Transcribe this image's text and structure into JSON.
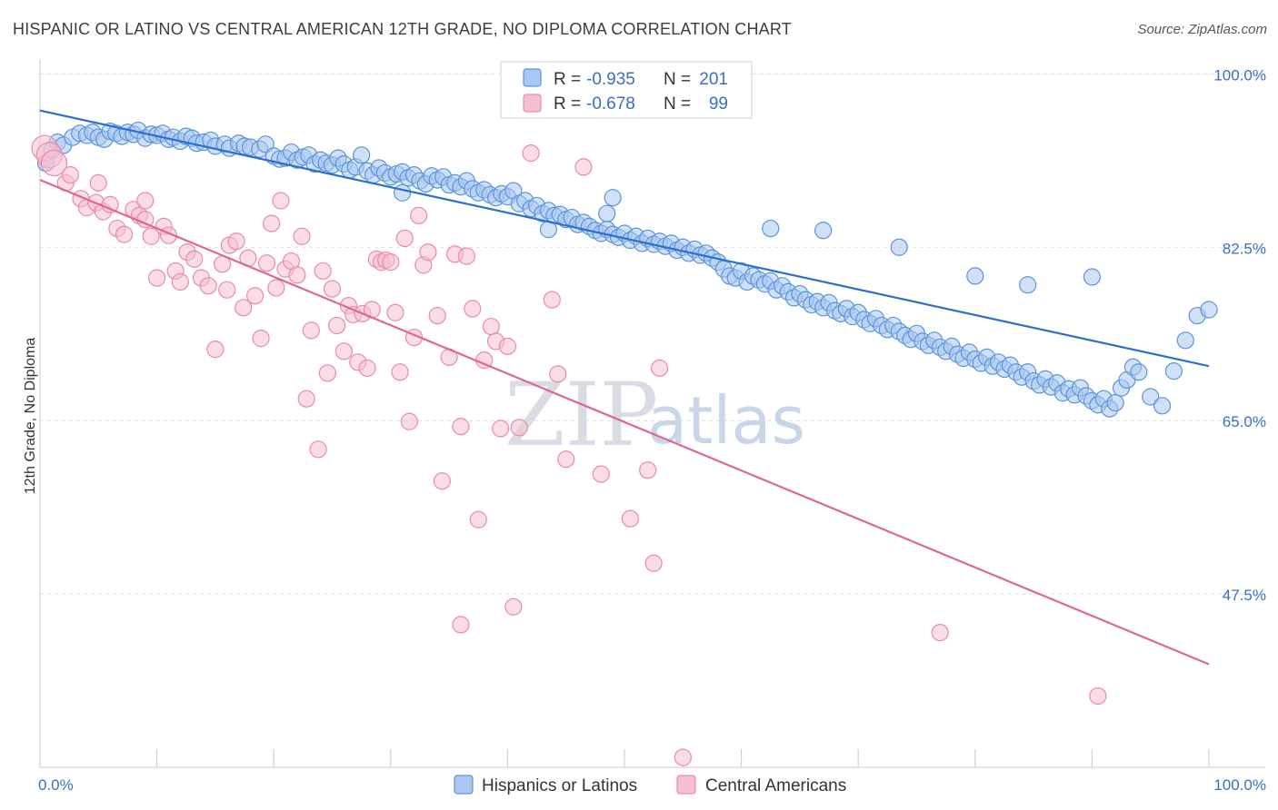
{
  "title": "HISPANIC OR LATINO VS CENTRAL AMERICAN 12TH GRADE, NO DIPLOMA CORRELATION CHART",
  "source": "Source: ZipAtlas.com",
  "watermark": {
    "part1": "ZIP",
    "part2": "atlas"
  },
  "colors": {
    "blue_fill": "#a9c8f0",
    "blue_stroke": "#5b93dc",
    "blue_line": "#2b6fd1",
    "pink_fill": "#f6bfd1",
    "pink_stroke": "#e98aab",
    "pink_line": "#e06594",
    "grid": "#dcdcdc",
    "axis_text": "#3a6fc4"
  },
  "legend": {
    "rows": [
      {
        "r_label": "R =",
        "r_value": "-0.935",
        "n_label": "N =",
        "n_value": "201"
      },
      {
        "r_label": "R =",
        "r_value": "-0.678",
        "n_label": "N =",
        "n_value": "99"
      }
    ]
  },
  "bottom_legend": [
    "Hispanics or Latinos",
    "Central Americans"
  ],
  "chart_data": {
    "type": "scatter",
    "title": "HISPANIC OR LATINO VS CENTRAL AMERICAN 12TH GRADE, NO DIPLOMA CORRELATION CHART",
    "xlabel": "",
    "ylabel": "12th Grade, No Diploma",
    "x_tick_labels": [
      "0.0%",
      "100.0%"
    ],
    "y_tick_labels": [
      "100.0%",
      "82.5%",
      "65.0%",
      "47.5%"
    ],
    "y_ticks": [
      100,
      82.5,
      65,
      47.5
    ],
    "xlim": [
      0,
      100
    ],
    "ylim": [
      30,
      101.5
    ],
    "grid": true,
    "legend_position": "top-center",
    "series": [
      {
        "name": "Hispanics or Latinos",
        "trend": {
          "x": [
            0,
            100
          ],
          "y": [
            96.3,
            70.5
          ]
        },
        "points": [
          [
            0.5,
            91.0
          ],
          [
            1.0,
            92.3
          ],
          [
            1.5,
            93.1
          ],
          [
            2.0,
            92.8
          ],
          [
            2.8,
            93.6
          ],
          [
            3.4,
            94.0
          ],
          [
            4.0,
            93.8
          ],
          [
            4.5,
            94.1
          ],
          [
            5.0,
            93.6
          ],
          [
            5.5,
            93.4
          ],
          [
            6.0,
            94.2
          ],
          [
            6.5,
            94.0
          ],
          [
            7.0,
            93.7
          ],
          [
            7.5,
            94.1
          ],
          [
            8.0,
            93.9
          ],
          [
            8.4,
            94.3
          ],
          [
            9.0,
            93.5
          ],
          [
            9.5,
            93.9
          ],
          [
            10.0,
            93.8
          ],
          [
            10.5,
            94.0
          ],
          [
            11.0,
            93.4
          ],
          [
            11.4,
            93.6
          ],
          [
            12.0,
            93.2
          ],
          [
            12.5,
            93.7
          ],
          [
            13.0,
            93.5
          ],
          [
            13.4,
            93.0
          ],
          [
            14.0,
            93.1
          ],
          [
            14.6,
            93.3
          ],
          [
            15.0,
            92.7
          ],
          [
            15.8,
            92.9
          ],
          [
            16.2,
            92.5
          ],
          [
            17.0,
            93.0
          ],
          [
            17.5,
            92.7
          ],
          [
            18.0,
            92.6
          ],
          [
            18.8,
            92.4
          ],
          [
            19.3,
            92.9
          ],
          [
            20.0,
            91.7
          ],
          [
            20.5,
            91.4
          ],
          [
            21.0,
            91.5
          ],
          [
            21.5,
            92.1
          ],
          [
            22.0,
            91.3
          ],
          [
            22.5,
            91.6
          ],
          [
            23.0,
            91.8
          ],
          [
            23.5,
            90.9
          ],
          [
            24.0,
            91.3
          ],
          [
            24.5,
            91.0
          ],
          [
            25.0,
            90.8
          ],
          [
            25.5,
            91.5
          ],
          [
            26.0,
            90.9
          ],
          [
            26.5,
            90.3
          ],
          [
            27.0,
            90.6
          ],
          [
            27.5,
            91.8
          ],
          [
            28.0,
            90.2
          ],
          [
            28.5,
            89.8
          ],
          [
            29.0,
            90.5
          ],
          [
            29.5,
            90.0
          ],
          [
            30.0,
            89.6
          ],
          [
            30.5,
            89.9
          ],
          [
            31.0,
            90.1
          ],
          [
            31.5,
            89.5
          ],
          [
            32.0,
            89.8
          ],
          [
            32.5,
            89.2
          ],
          [
            33.0,
            88.9
          ],
          [
            33.5,
            89.7
          ],
          [
            34.0,
            89.3
          ],
          [
            34.5,
            89.6
          ],
          [
            35.0,
            88.8
          ],
          [
            35.5,
            89.0
          ],
          [
            36.0,
            88.6
          ],
          [
            36.5,
            89.2
          ],
          [
            37.0,
            88.4
          ],
          [
            37.5,
            88.0
          ],
          [
            38.0,
            88.3
          ],
          [
            38.5,
            87.8
          ],
          [
            39.0,
            87.5
          ],
          [
            39.5,
            87.9
          ],
          [
            40.0,
            87.6
          ],
          [
            40.5,
            88.2
          ],
          [
            41.0,
            86.9
          ],
          [
            41.5,
            87.2
          ],
          [
            42.0,
            86.4
          ],
          [
            42.5,
            86.7
          ],
          [
            43.0,
            85.9
          ],
          [
            43.5,
            86.2
          ],
          [
            44.0,
            85.7
          ],
          [
            44.5,
            85.8
          ],
          [
            45.0,
            85.3
          ],
          [
            45.5,
            85.5
          ],
          [
            46.0,
            84.8
          ],
          [
            46.5,
            85.0
          ],
          [
            47.0,
            84.6
          ],
          [
            47.5,
            84.2
          ],
          [
            48.0,
            83.9
          ],
          [
            48.5,
            84.3
          ],
          [
            49.0,
            83.8
          ],
          [
            49.5,
            83.5
          ],
          [
            50.0,
            83.9
          ],
          [
            50.5,
            83.2
          ],
          [
            51.0,
            83.6
          ],
          [
            51.5,
            82.9
          ],
          [
            52.0,
            83.4
          ],
          [
            52.5,
            82.8
          ],
          [
            53.0,
            83.1
          ],
          [
            53.5,
            82.6
          ],
          [
            54.0,
            82.9
          ],
          [
            54.5,
            82.2
          ],
          [
            55.0,
            82.5
          ],
          [
            55.5,
            81.9
          ],
          [
            56.0,
            82.3
          ],
          [
            56.5,
            81.7
          ],
          [
            57.0,
            81.9
          ],
          [
            57.5,
            81.4
          ],
          [
            58.0,
            81.0
          ],
          [
            58.5,
            80.3
          ],
          [
            59.0,
            79.6
          ],
          [
            59.5,
            79.4
          ],
          [
            60.0,
            80.1
          ],
          [
            60.5,
            79.0
          ],
          [
            61.0,
            79.6
          ],
          [
            61.5,
            79.2
          ],
          [
            62.0,
            78.8
          ],
          [
            62.5,
            79.1
          ],
          [
            63.0,
            78.2
          ],
          [
            63.5,
            78.6
          ],
          [
            64.0,
            78.0
          ],
          [
            64.5,
            77.4
          ],
          [
            65.0,
            77.8
          ],
          [
            65.5,
            77.2
          ],
          [
            66.0,
            76.7
          ],
          [
            66.5,
            77.0
          ],
          [
            67.0,
            76.4
          ],
          [
            67.5,
            76.9
          ],
          [
            68.0,
            76.1
          ],
          [
            68.5,
            75.8
          ],
          [
            69.0,
            76.3
          ],
          [
            69.5,
            75.5
          ],
          [
            70.0,
            75.9
          ],
          [
            70.5,
            75.2
          ],
          [
            71.0,
            74.8
          ],
          [
            71.5,
            75.3
          ],
          [
            72.0,
            74.6
          ],
          [
            72.5,
            74.2
          ],
          [
            73.0,
            74.6
          ],
          [
            73.5,
            74.0
          ],
          [
            74.0,
            73.6
          ],
          [
            74.5,
            73.2
          ],
          [
            75.0,
            73.8
          ],
          [
            75.5,
            73.0
          ],
          [
            76.0,
            72.6
          ],
          [
            76.5,
            73.1
          ],
          [
            77.0,
            72.4
          ],
          [
            77.5,
            72.0
          ],
          [
            78.0,
            72.5
          ],
          [
            78.5,
            71.7
          ],
          [
            79.0,
            71.3
          ],
          [
            79.5,
            71.9
          ],
          [
            80.0,
            71.2
          ],
          [
            80.5,
            70.8
          ],
          [
            81.0,
            71.4
          ],
          [
            81.5,
            70.5
          ],
          [
            82.0,
            70.9
          ],
          [
            82.5,
            70.2
          ],
          [
            83.0,
            70.6
          ],
          [
            83.5,
            69.9
          ],
          [
            84.0,
            69.4
          ],
          [
            84.5,
            69.9
          ],
          [
            85.0,
            69.0
          ],
          [
            85.5,
            68.6
          ],
          [
            86.0,
            69.2
          ],
          [
            86.5,
            68.4
          ],
          [
            87.0,
            68.8
          ],
          [
            87.5,
            67.8
          ],
          [
            88.0,
            68.2
          ],
          [
            88.5,
            67.6
          ],
          [
            89.0,
            68.3
          ],
          [
            89.5,
            67.5
          ],
          [
            90.0,
            67.0
          ],
          [
            90.5,
            66.6
          ],
          [
            91.0,
            67.2
          ],
          [
            91.5,
            66.2
          ],
          [
            92.0,
            66.8
          ],
          [
            92.5,
            68.3
          ],
          [
            93.0,
            69.1
          ],
          [
            93.5,
            70.4
          ],
          [
            94.0,
            69.9
          ],
          [
            95.0,
            67.4
          ],
          [
            96.0,
            66.5
          ],
          [
            97.0,
            70.0
          ],
          [
            98.0,
            73.1
          ],
          [
            99.0,
            75.6
          ],
          [
            100.0,
            76.2
          ],
          [
            31.0,
            88.0
          ],
          [
            43.5,
            84.3
          ],
          [
            48.5,
            85.9
          ],
          [
            49.0,
            87.5
          ],
          [
            62.5,
            84.4
          ],
          [
            67.0,
            84.2
          ],
          [
            73.5,
            82.5
          ],
          [
            80.0,
            79.6
          ],
          [
            84.5,
            78.7
          ],
          [
            90.0,
            79.5
          ]
        ]
      },
      {
        "name": "Central Americans",
        "trend": {
          "x": [
            0,
            100
          ],
          "y": [
            89.3,
            40.4
          ]
        },
        "points": [
          [
            0.4,
            92.5
          ],
          [
            0.8,
            91.8
          ],
          [
            1.2,
            91.0
          ],
          [
            2.2,
            89.0
          ],
          [
            2.6,
            89.8
          ],
          [
            3.5,
            87.4
          ],
          [
            4.0,
            86.5
          ],
          [
            4.8,
            87.0
          ],
          [
            5.4,
            86.1
          ],
          [
            6.0,
            86.8
          ],
          [
            6.6,
            84.4
          ],
          [
            7.2,
            83.8
          ],
          [
            8.0,
            86.3
          ],
          [
            8.5,
            85.7
          ],
          [
            9.0,
            87.2
          ],
          [
            9.5,
            83.6
          ],
          [
            10.0,
            79.4
          ],
          [
            10.6,
            84.6
          ],
          [
            11.0,
            83.7
          ],
          [
            11.6,
            80.1
          ],
          [
            12.0,
            79.0
          ],
          [
            12.6,
            82.0
          ],
          [
            13.2,
            81.3
          ],
          [
            13.8,
            79.4
          ],
          [
            14.4,
            78.6
          ],
          [
            15.0,
            72.2
          ],
          [
            15.6,
            80.8
          ],
          [
            16.2,
            82.7
          ],
          [
            16.8,
            83.1
          ],
          [
            17.4,
            76.4
          ],
          [
            17.8,
            81.4
          ],
          [
            18.4,
            77.6
          ],
          [
            18.9,
            73.3
          ],
          [
            19.4,
            80.9
          ],
          [
            19.8,
            84.9
          ],
          [
            20.2,
            78.4
          ],
          [
            20.6,
            87.2
          ],
          [
            21.0,
            80.3
          ],
          [
            21.5,
            81.1
          ],
          [
            22.0,
            79.7
          ],
          [
            22.4,
            83.6
          ],
          [
            22.8,
            67.2
          ],
          [
            23.2,
            74.1
          ],
          [
            23.8,
            62.1
          ],
          [
            24.2,
            80.1
          ],
          [
            24.6,
            69.8
          ],
          [
            25.0,
            78.3
          ],
          [
            25.4,
            74.6
          ],
          [
            26.0,
            72.0
          ],
          [
            26.4,
            76.6
          ],
          [
            26.8,
            75.7
          ],
          [
            27.2,
            70.9
          ],
          [
            27.6,
            75.8
          ],
          [
            28.0,
            70.3
          ],
          [
            28.4,
            76.2
          ],
          [
            28.8,
            81.3
          ],
          [
            29.2,
            81.0
          ],
          [
            29.6,
            81.2
          ],
          [
            30.0,
            81.0
          ],
          [
            30.4,
            75.9
          ],
          [
            30.8,
            69.9
          ],
          [
            31.2,
            83.4
          ],
          [
            31.6,
            64.9
          ],
          [
            32.0,
            73.4
          ],
          [
            32.4,
            85.7
          ],
          [
            32.8,
            80.7
          ],
          [
            33.2,
            82.0
          ],
          [
            34.0,
            75.6
          ],
          [
            34.4,
            58.9
          ],
          [
            35.0,
            71.4
          ],
          [
            35.5,
            81.8
          ],
          [
            36.0,
            64.4
          ],
          [
            36.5,
            81.6
          ],
          [
            37.0,
            76.3
          ],
          [
            37.5,
            55.0
          ],
          [
            38.0,
            71.1
          ],
          [
            38.6,
            74.5
          ],
          [
            39.0,
            73.0
          ],
          [
            39.4,
            64.2
          ],
          [
            40.0,
            72.5
          ],
          [
            40.5,
            46.2
          ],
          [
            41.0,
            64.3
          ],
          [
            42.0,
            92.0
          ],
          [
            43.8,
            77.2
          ],
          [
            44.3,
            69.7
          ],
          [
            45.0,
            61.1
          ],
          [
            46.5,
            90.6
          ],
          [
            48.0,
            59.6
          ],
          [
            50.5,
            55.1
          ],
          [
            52.0,
            60.0
          ],
          [
            52.5,
            50.6
          ],
          [
            53.0,
            70.3
          ],
          [
            77.0,
            43.6
          ],
          [
            90.5,
            37.2
          ],
          [
            55.0,
            31.0
          ],
          [
            36.0,
            44.4
          ],
          [
            16.0,
            78.2
          ],
          [
            9.0,
            85.3
          ],
          [
            5.0,
            89.0
          ]
        ]
      }
    ]
  }
}
